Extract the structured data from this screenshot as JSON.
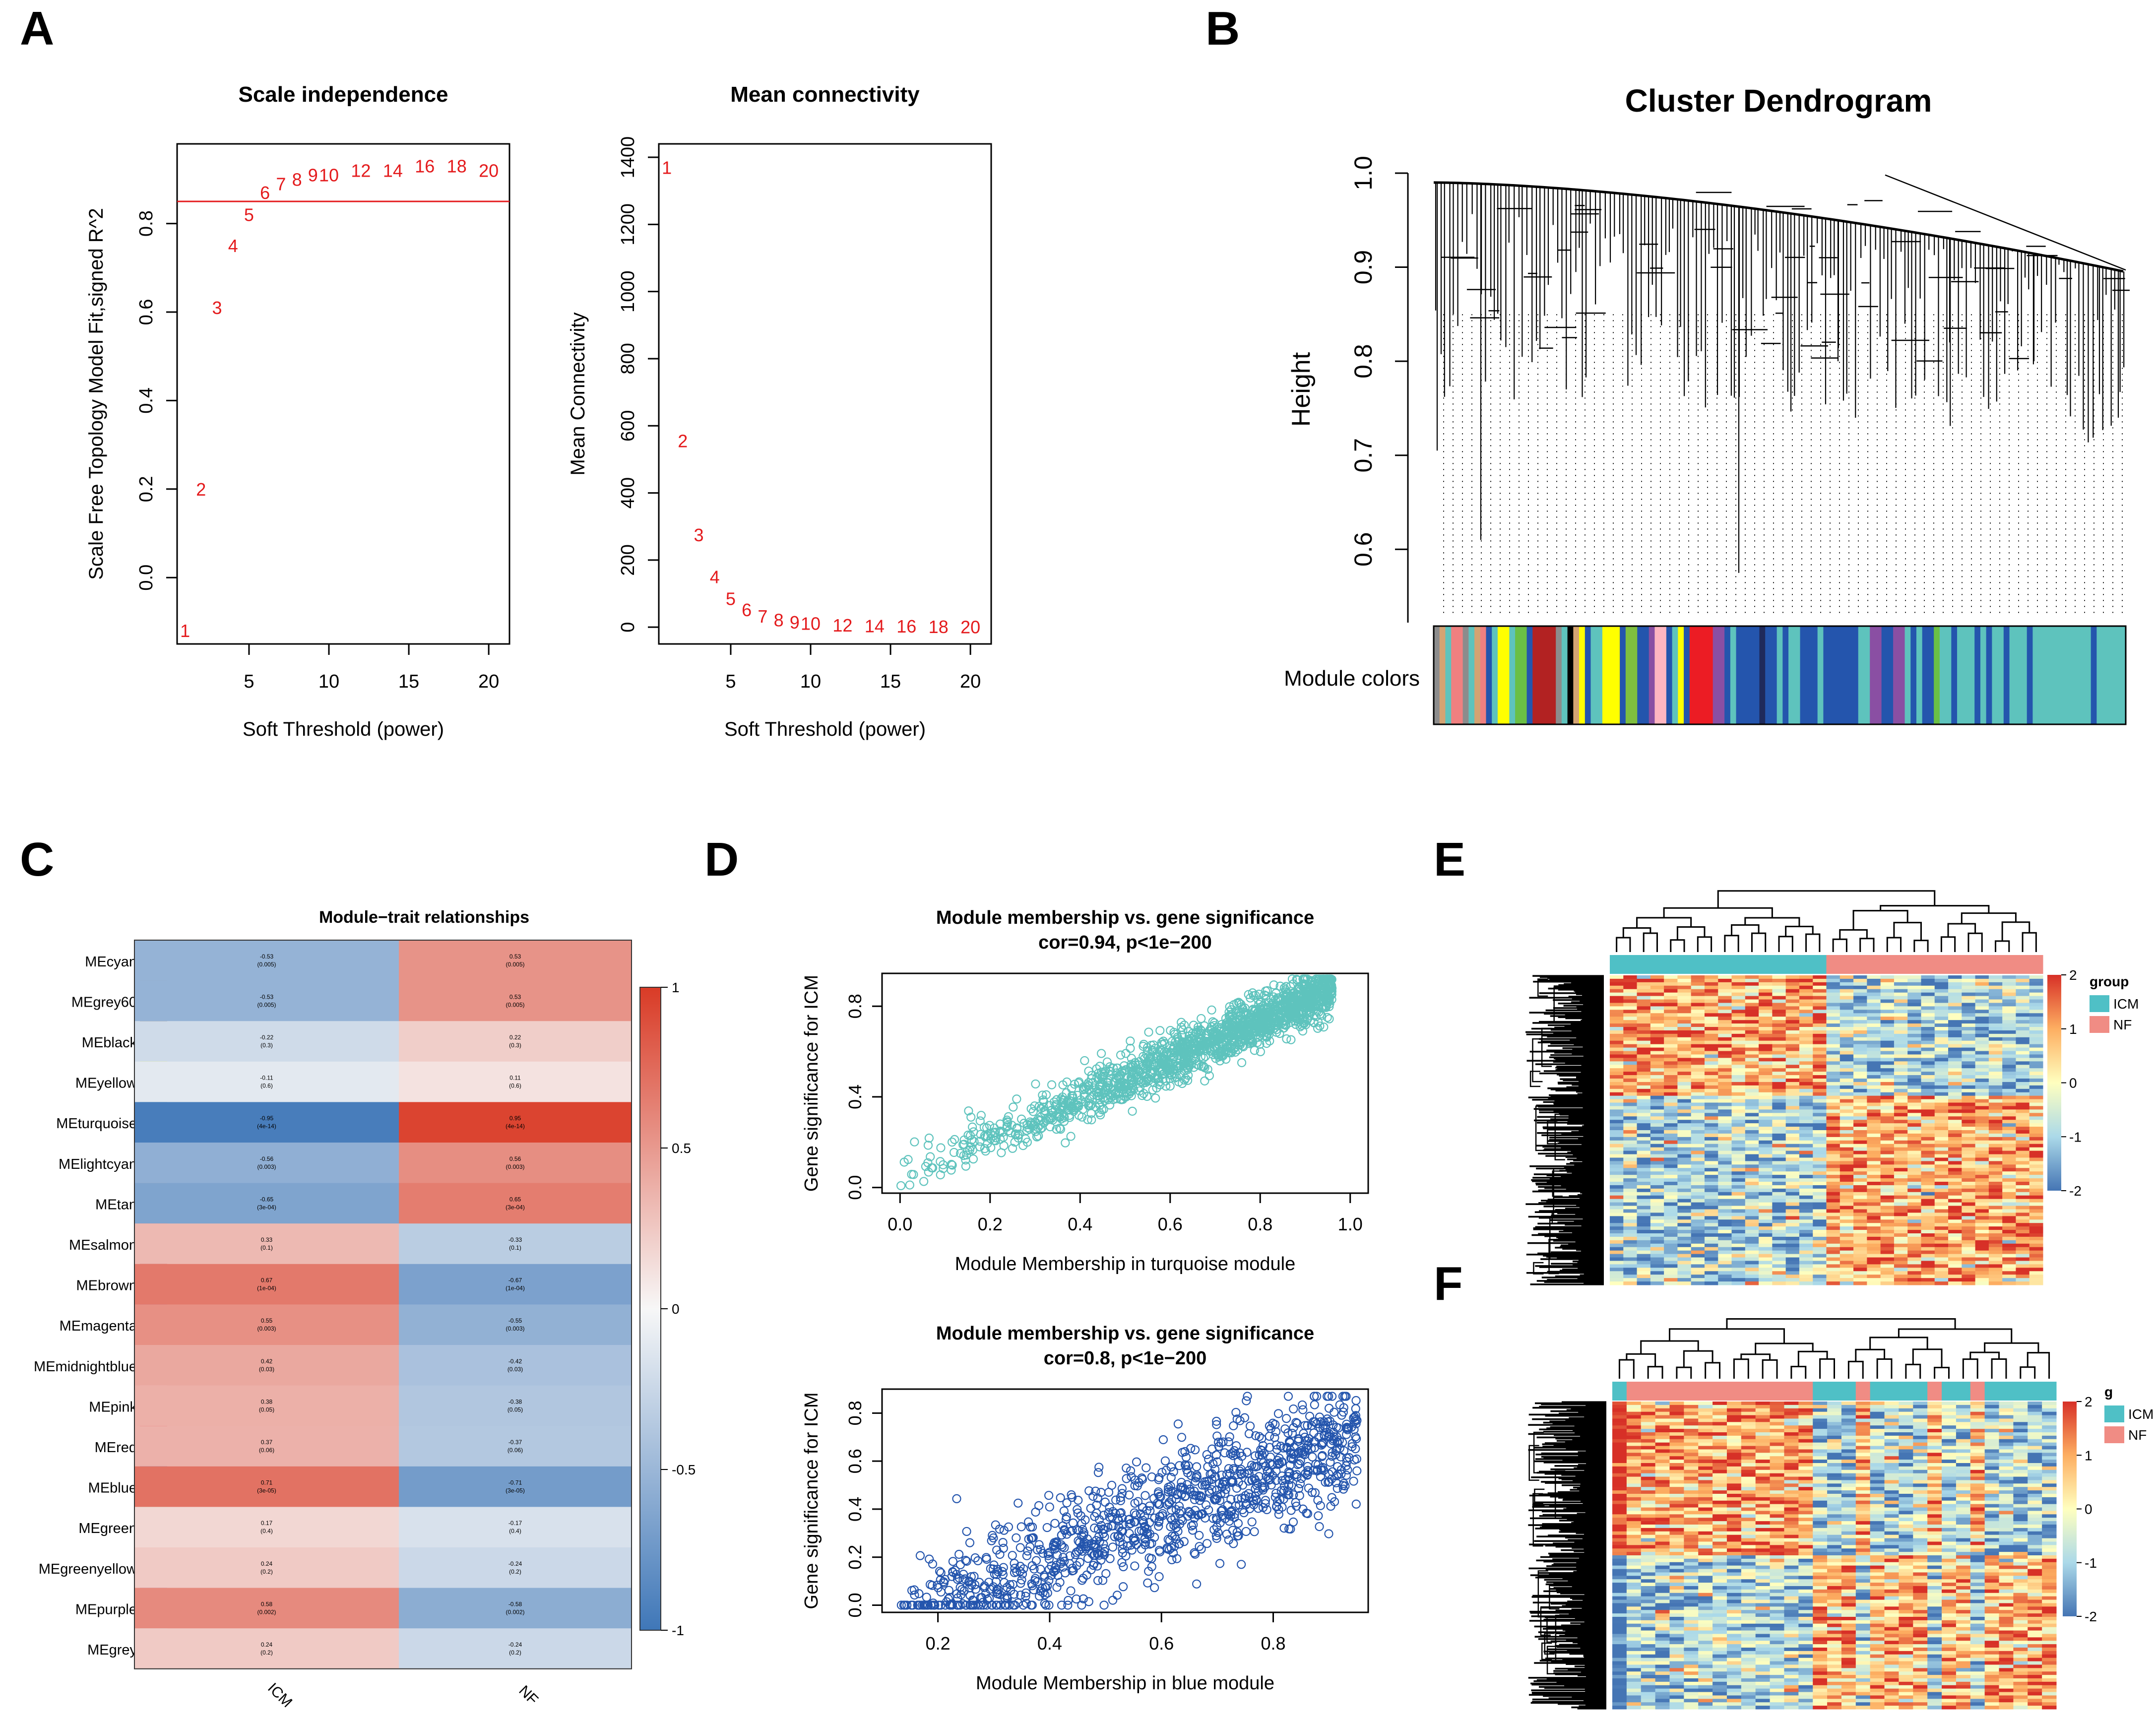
{
  "colors": {
    "red": "#e41a1c",
    "turquoise": "#5ec3bd",
    "blue": "#2455ad",
    "heat_blue": "#3f77b8",
    "heat_white": "#f7f7f7",
    "heat_red": "#d93b26",
    "hm_blue": "#4575b4",
    "hm_yellow": "#ffffbf",
    "hm_red": "#d73027",
    "group_icm": "#4fc0c6",
    "group_nf": "#f08c84"
  },
  "panel_labels": [
    "A",
    "B",
    "C",
    "D",
    "E",
    "F"
  ],
  "chart_data": [
    {
      "panel": "A",
      "type": "scatter",
      "marker": "text",
      "title": "Scale independence",
      "xlabel": "Soft Threshold (power)",
      "ylabel": "Scale Free Topology Model Fit,signed R^2",
      "xlim": [
        0.5,
        21.3
      ],
      "ylim": [
        -0.15,
        0.98
      ],
      "xticks": [
        "5",
        "10",
        "15",
        "20"
      ],
      "xtick_values": [
        5,
        10,
        15,
        20
      ],
      "yticks": [
        "0.0",
        "0.2",
        "0.4",
        "0.6",
        "0.8"
      ],
      "ytick_values": [
        0,
        0.2,
        0.4,
        0.6,
        0.8
      ],
      "hline": 0.85,
      "points": [
        {
          "x": 1,
          "y": -0.12,
          "label": "1"
        },
        {
          "x": 2,
          "y": 0.2,
          "label": "2"
        },
        {
          "x": 3,
          "y": 0.61,
          "label": "3"
        },
        {
          "x": 4,
          "y": 0.75,
          "label": "4"
        },
        {
          "x": 5,
          "y": 0.82,
          "label": "5"
        },
        {
          "x": 6,
          "y": 0.87,
          "label": "6"
        },
        {
          "x": 7,
          "y": 0.89,
          "label": "7"
        },
        {
          "x": 8,
          "y": 0.9,
          "label": "8"
        },
        {
          "x": 9,
          "y": 0.91,
          "label": "9"
        },
        {
          "x": 10,
          "y": 0.91,
          "label": "10"
        },
        {
          "x": 12,
          "y": 0.92,
          "label": "12"
        },
        {
          "x": 14,
          "y": 0.92,
          "label": "14"
        },
        {
          "x": 16,
          "y": 0.93,
          "label": "16"
        },
        {
          "x": 18,
          "y": 0.93,
          "label": "18"
        },
        {
          "x": 20,
          "y": 0.92,
          "label": "20"
        }
      ]
    },
    {
      "panel": "A",
      "type": "scatter",
      "marker": "text",
      "title": "Mean connectivity",
      "xlabel": "Soft Threshold (power)",
      "ylabel": "Mean Connectivity",
      "xlim": [
        0.5,
        21.3
      ],
      "ylim": [
        -50,
        1440
      ],
      "xticks": [
        "5",
        "10",
        "15",
        "20"
      ],
      "xtick_values": [
        5,
        10,
        15,
        20
      ],
      "yticks": [
        "0",
        "200",
        "400",
        "600",
        "800",
        "1000",
        "1200",
        "1400"
      ],
      "ytick_values": [
        0,
        200,
        400,
        600,
        800,
        1000,
        1200,
        1400
      ],
      "points": [
        {
          "x": 1,
          "y": 1370,
          "label": "1"
        },
        {
          "x": 2,
          "y": 555,
          "label": "2"
        },
        {
          "x": 3,
          "y": 275,
          "label": "3"
        },
        {
          "x": 4,
          "y": 150,
          "label": "4"
        },
        {
          "x": 5,
          "y": 85,
          "label": "5"
        },
        {
          "x": 6,
          "y": 52,
          "label": "6"
        },
        {
          "x": 7,
          "y": 33,
          "label": "7"
        },
        {
          "x": 8,
          "y": 22,
          "label": "8"
        },
        {
          "x": 9,
          "y": 15,
          "label": "9"
        },
        {
          "x": 10,
          "y": 11,
          "label": "10"
        },
        {
          "x": 12,
          "y": 6,
          "label": "12"
        },
        {
          "x": 14,
          "y": 4,
          "label": "14"
        },
        {
          "x": 16,
          "y": 3,
          "label": "16"
        },
        {
          "x": 18,
          "y": 2,
          "label": "18"
        },
        {
          "x": 20,
          "y": 1,
          "label": "20"
        }
      ]
    },
    {
      "panel": "B",
      "type": "dendrogram",
      "title": "Cluster Dendrogram",
      "ylabel": "Height",
      "ylim": [
        0.53,
        1.01
      ],
      "yticks": [
        "0.6",
        "0.7",
        "0.8",
        "0.9",
        "1.0"
      ],
      "ytick_values": [
        0.6,
        0.7,
        0.8,
        0.9,
        1.0
      ],
      "colorbar_label": "Module colors",
      "module_color_runs": [
        [
          "#8c8c8c",
          1
        ],
        [
          "#d4a373",
          1
        ],
        [
          "#5ec3bd",
          1
        ],
        [
          "#f08080",
          2
        ],
        [
          "#8c8c8c",
          1
        ],
        [
          "#5ec3bd",
          1
        ],
        [
          "#d4a373",
          1
        ],
        [
          "#f08080",
          1
        ],
        [
          "#2455ad",
          1
        ],
        [
          "#5ec3bd",
          1
        ],
        [
          "#ffff00",
          2
        ],
        [
          "#5ec3bd",
          1
        ],
        [
          "#6abf45",
          2
        ],
        [
          "#2455ad",
          1
        ],
        [
          "#b22222",
          4
        ],
        [
          "#8c8c8c",
          1
        ],
        [
          "#5ec3bd",
          1
        ],
        [
          "#000000",
          1
        ],
        [
          "#d4a373",
          1
        ],
        [
          "#ffff00",
          1
        ],
        [
          "#2455ad",
          1
        ],
        [
          "#5ec3bd",
          2
        ],
        [
          "#ffff00",
          3
        ],
        [
          "#2455ad",
          1
        ],
        [
          "#7fbf3f",
          2
        ],
        [
          "#2455ad",
          2
        ],
        [
          "#8a4fa3",
          1
        ],
        [
          "#ffb6c1",
          2
        ],
        [
          "#2455ad",
          1
        ],
        [
          "#5ec3bd",
          1
        ],
        [
          "#ffff00",
          1
        ],
        [
          "#2455ad",
          1
        ],
        [
          "#ec1c24",
          4
        ],
        [
          "#8a4fa3",
          2
        ],
        [
          "#2455ad",
          1
        ],
        [
          "#5ec3bd",
          1
        ],
        [
          "#2455ad",
          4
        ],
        [
          "#1f2a5c",
          1
        ],
        [
          "#2455ad",
          2
        ],
        [
          "#5ec3bd",
          1
        ],
        [
          "#2455ad",
          1
        ],
        [
          "#5ec3bd",
          2
        ],
        [
          "#2455ad",
          3
        ],
        [
          "#5ec3bd",
          1
        ],
        [
          "#2455ad",
          6
        ],
        [
          "#5ec3bd",
          2
        ],
        [
          "#8a4fa3",
          2
        ],
        [
          "#2455ad",
          2
        ],
        [
          "#8a4fa3",
          2
        ],
        [
          "#5ec3bd",
          1
        ],
        [
          "#2455ad",
          1
        ],
        [
          "#5ec3bd",
          1
        ],
        [
          "#2455ad",
          2
        ],
        [
          "#6abf45",
          1
        ],
        [
          "#5ec3bd",
          2
        ],
        [
          "#2455ad",
          1
        ],
        [
          "#5ec3bd",
          3
        ],
        [
          "#2455ad",
          1
        ],
        [
          "#5ec3bd",
          1
        ],
        [
          "#2455ad",
          1
        ],
        [
          "#5ec3bd",
          2
        ],
        [
          "#2455ad",
          1
        ],
        [
          "#5ec3bd",
          3
        ],
        [
          "#2455ad",
          1
        ],
        [
          "#5ec3bd",
          10
        ],
        [
          "#2455ad",
          1
        ],
        [
          "#5ec3bd",
          5
        ]
      ]
    },
    {
      "panel": "C",
      "type": "heatmap",
      "title": "Module−trait relationships",
      "columns": [
        "ICM",
        "NF"
      ],
      "rows": [
        "MEcyan",
        "MEgrey60",
        "MEblack",
        "MEyellow",
        "MEturquoise",
        "MElightcyan",
        "MEtan",
        "MEsalmon",
        "MEbrown",
        "MEmagenta",
        "MEmidnightblue",
        "MEpink",
        "MEred",
        "MEblue",
        "MEgreen",
        "MEgreenyellow",
        "MEpurple",
        "MEgrey"
      ],
      "row_colors": [
        "#56c8de",
        "#999999",
        "#000000",
        "#ffff00",
        "#5ec3bd",
        "#e0ffff",
        "#d2b48c",
        "#fa8072",
        "#a52a2a",
        "#b04fab",
        "#191970",
        "#ffc0cb",
        "#ec1c24",
        "#2455ad",
        "#6abf45",
        "#b5d334",
        "#7b3f98",
        "#bebebe"
      ],
      "values": [
        [
          -0.53,
          0.53
        ],
        [
          -0.53,
          0.53
        ],
        [
          -0.22,
          0.22
        ],
        [
          -0.11,
          0.11
        ],
        [
          -0.95,
          0.95
        ],
        [
          -0.56,
          0.56
        ],
        [
          -0.65,
          0.65
        ],
        [
          0.33,
          -0.33
        ],
        [
          0.67,
          -0.67
        ],
        [
          0.55,
          -0.55
        ],
        [
          0.42,
          -0.42
        ],
        [
          0.38,
          -0.38
        ],
        [
          0.37,
          -0.37
        ],
        [
          0.71,
          -0.71
        ],
        [
          0.17,
          -0.17
        ],
        [
          0.24,
          -0.24
        ],
        [
          0.58,
          -0.58
        ],
        [
          0.24,
          -0.24
        ]
      ],
      "cell_text": [
        [
          "-0.53\n(0.005)",
          "0.53\n(0.005)"
        ],
        [
          "-0.53\n(0.005)",
          "0.53\n(0.005)"
        ],
        [
          "-0.22\n(0.3)",
          "0.22\n(0.3)"
        ],
        [
          "-0.11\n(0.6)",
          "0.11\n(0.6)"
        ],
        [
          "-0.95\n(4e-14)",
          "0.95\n(4e-14)"
        ],
        [
          "-0.56\n(0.003)",
          "0.56\n(0.003)"
        ],
        [
          "-0.65\n(3e-04)",
          "0.65\n(3e-04)"
        ],
        [
          "0.33\n(0.1)",
          "-0.33\n(0.1)"
        ],
        [
          "0.67\n(1e-04)",
          "-0.67\n(1e-04)"
        ],
        [
          "0.55\n(0.003)",
          "-0.55\n(0.003)"
        ],
        [
          "0.42\n(0.03)",
          "-0.42\n(0.03)"
        ],
        [
          "0.38\n(0.05)",
          "-0.38\n(0.05)"
        ],
        [
          "0.37\n(0.06)",
          "-0.37\n(0.06)"
        ],
        [
          "0.71\n(3e-05)",
          "-0.71\n(3e-05)"
        ],
        [
          "0.17\n(0.4)",
          "-0.17\n(0.4)"
        ],
        [
          "0.24\n(0.2)",
          "-0.24\n(0.2)"
        ],
        [
          "0.58\n(0.002)",
          "-0.58\n(0.002)"
        ],
        [
          "0.24\n(0.2)",
          "-0.24\n(0.2)"
        ]
      ],
      "legend_ticks": [
        "1",
        "0.5",
        "0",
        "-0.5",
        "-1"
      ],
      "legend_tick_values": [
        1,
        0.5,
        0,
        -0.5,
        -1
      ]
    },
    {
      "panel": "D",
      "type": "scatter",
      "title": "Module membership vs. gene significance",
      "subtitle": "cor=0.94, p<1e−200",
      "xlabel": "Module Membership in turquoise module",
      "ylabel": "Gene significance for ICM",
      "xlim": [
        -0.04,
        1.04
      ],
      "ylim": [
        -0.025,
        0.945
      ],
      "xticks": [
        "0.0",
        "0.2",
        "0.4",
        "0.6",
        "0.8",
        "1.0"
      ],
      "xtick_values": [
        0,
        0.2,
        0.4,
        0.6,
        0.8,
        1.0
      ],
      "yticks": [
        "0.0",
        "0.4",
        "0.8"
      ],
      "ytick_values": [
        0,
        0.4,
        0.8
      ],
      "n_points": 1500,
      "cor": 0.94,
      "x_range_of_points": [
        0.0,
        0.96
      ],
      "color": "#5ec3bd"
    },
    {
      "panel": "D",
      "type": "scatter",
      "title": "Module membership vs. gene significance",
      "subtitle": "cor=0.8, p<1e−200",
      "xlabel": "Module Membership in blue module",
      "ylabel": "Gene significance for ICM",
      "xlim": [
        0.1,
        0.97
      ],
      "ylim": [
        -0.03,
        0.9
      ],
      "xticks": [
        "0.2",
        "0.4",
        "0.6",
        "0.8"
      ],
      "xtick_values": [
        0.2,
        0.4,
        0.6,
        0.8
      ],
      "yticks": [
        "0.0",
        "0.2",
        "0.4",
        "0.6",
        "0.8"
      ],
      "ytick_values": [
        0,
        0.2,
        0.4,
        0.6,
        0.8
      ],
      "n_points": 1100,
      "cor": 0.8,
      "x_range_of_points": [
        0.13,
        0.95
      ],
      "color": "#2455ad"
    },
    {
      "panel": "E",
      "type": "heatmap",
      "legend_title": "group",
      "legend_items": [
        "ICM",
        "NF"
      ],
      "scale_ticks": [
        "2",
        "1",
        "0",
        "-1",
        "-2"
      ],
      "scale_tick_values": [
        2,
        1,
        0,
        -1,
        -2
      ],
      "sample_groups": [
        "ICM",
        "ICM",
        "ICM",
        "ICM",
        "ICM",
        "ICM",
        "ICM",
        "ICM",
        "ICM",
        "ICM",
        "ICM",
        "ICM",
        "ICM",
        "ICM",
        "ICM",
        "ICM",
        "NF",
        "NF",
        "NF",
        "NF",
        "NF",
        "NF",
        "NF",
        "NF",
        "NF",
        "NF",
        "NF",
        "NF",
        "NF",
        "NF",
        "NF",
        "NF"
      ],
      "gene_blocks": [
        [
          0.38,
          1
        ],
        [
          0.62,
          -1
        ]
      ]
    },
    {
      "panel": "F",
      "type": "heatmap",
      "legend_title": "g",
      "legend_items": [
        "ICM",
        "NF"
      ],
      "scale_ticks": [
        "2",
        "1",
        "0",
        "-1",
        "-2"
      ],
      "scale_tick_values": [
        2,
        1,
        0,
        -1,
        -2
      ],
      "sample_groups": [
        "ICM",
        "NF",
        "NF",
        "NF",
        "NF",
        "NF",
        "NF",
        "NF",
        "NF",
        "NF",
        "NF",
        "NF",
        "NF",
        "NF",
        "ICM",
        "ICM",
        "ICM",
        "NF",
        "ICM",
        "ICM",
        "ICM",
        "ICM",
        "NF",
        "ICM",
        "ICM",
        "NF",
        "ICM",
        "ICM",
        "ICM",
        "ICM",
        "ICM"
      ],
      "gene_blocks": [
        [
          0.5,
          -1
        ],
        [
          0.5,
          1
        ]
      ]
    }
  ]
}
